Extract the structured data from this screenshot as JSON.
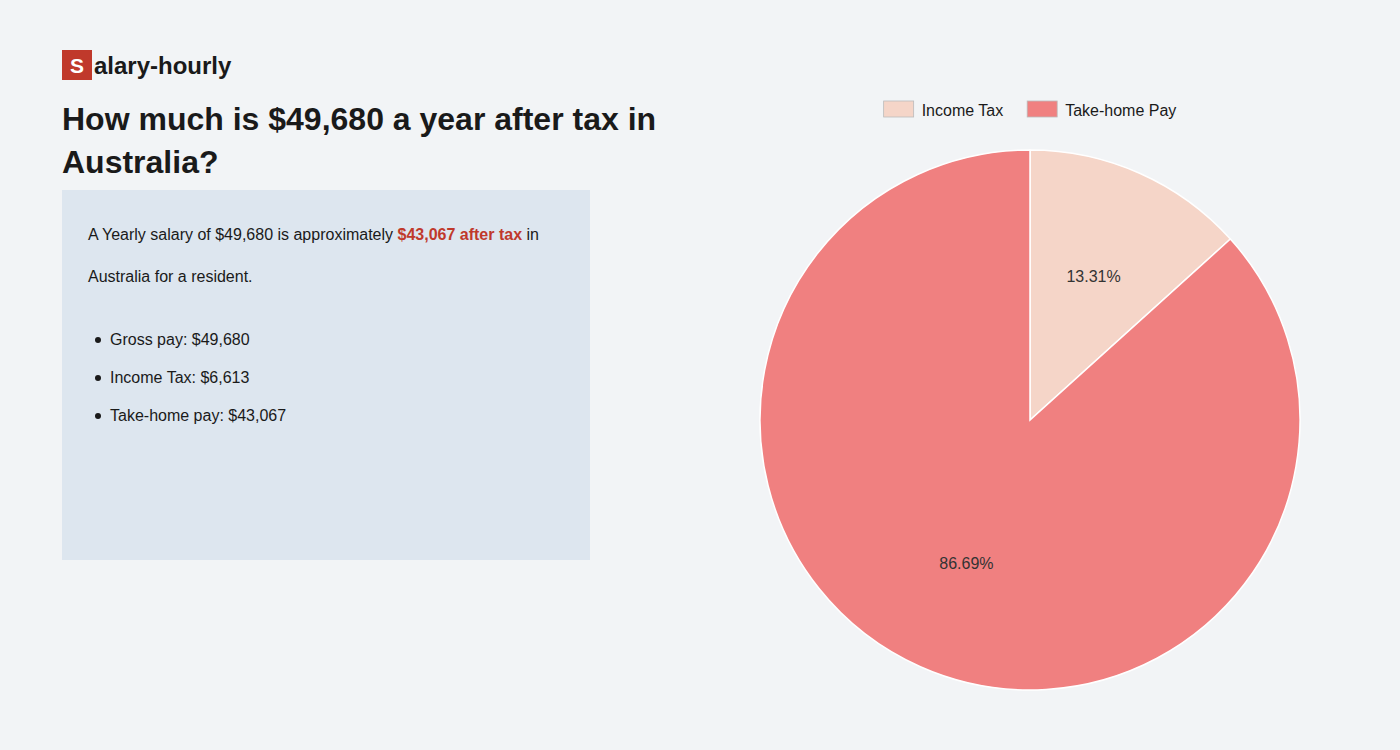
{
  "chart_data": {
    "type": "pie",
    "title": "How much is $49,680 a year after tax in\nAustralia?",
    "categories": [
      "Income Tax",
      "Take-home Pay"
    ],
    "values": [
      13.31,
      86.69
    ],
    "value_labels": [
      "13.31%",
      "86.69%"
    ],
    "colors": [
      "#f5d5c8",
      "#f08080"
    ],
    "data_labels": true,
    "legend": "top",
    "annotations": [
      {
        "text": "S",
        "color": "#c0392b"
      },
      {
        "text": "alary-hourly",
        "color": "#1a1a1a"
      },
      {
        "text": "A Yearly salary of $49,680 is approximately ",
        "color": "#1a1a1a"
      },
      {
        "text": "$43,067 after tax",
        "color": "#c0392b"
      },
      {
        "text": " in",
        "color": "#1a1a1a"
      },
      {
        "text": "Australia for a resident.",
        "color": "#1a1a1a"
      },
      {
        "text": "Gross pay: $49,680",
        "color": "#1a1a1a"
      },
      {
        "text": "Income Tax: $6,613",
        "color": "#1a1a1a"
      },
      {
        "text": "Take-home pay: $43,067",
        "color": "#1a1a1a"
      }
    ]
  }
}
